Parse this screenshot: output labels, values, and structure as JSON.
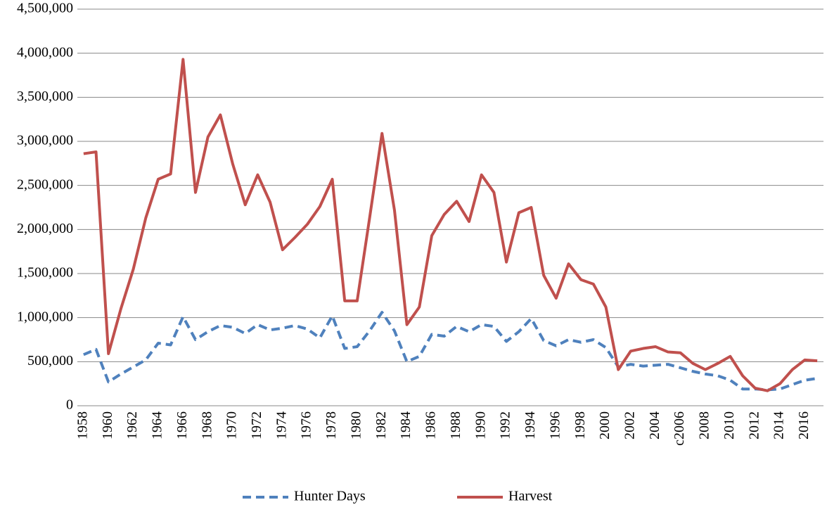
{
  "chart_data": {
    "type": "line",
    "categories": [
      "1958",
      null,
      "1960",
      null,
      "1962",
      null,
      "1964",
      null,
      "1966",
      null,
      "1968",
      null,
      "1970",
      null,
      "1972",
      null,
      "1974",
      null,
      "1976",
      null,
      "1978",
      null,
      "1980",
      null,
      "1982",
      null,
      "1984",
      null,
      "1986",
      null,
      "1988",
      null,
      "1990",
      null,
      "1992",
      null,
      "1994",
      null,
      "1996",
      null,
      "1998",
      null,
      "2000",
      null,
      "2002",
      null,
      "2004",
      null,
      "c2006",
      null,
      "2008",
      null,
      "2010",
      null,
      "2012",
      null,
      "2014",
      null,
      "2016",
      null
    ],
    "series": [
      {
        "name": "Hunter Days",
        "color": "#4f81bd",
        "dashed": true,
        "values": [
          580000,
          640000,
          270000,
          360000,
          440000,
          520000,
          710000,
          690000,
          1010000,
          750000,
          840000,
          910000,
          890000,
          820000,
          920000,
          860000,
          880000,
          910000,
          870000,
          770000,
          1020000,
          650000,
          670000,
          850000,
          1060000,
          850000,
          500000,
          560000,
          810000,
          790000,
          900000,
          840000,
          920000,
          900000,
          730000,
          840000,
          990000,
          740000,
          680000,
          750000,
          720000,
          750000,
          660000,
          440000,
          470000,
          450000,
          460000,
          470000,
          430000,
          390000,
          360000,
          340000,
          290000,
          190000,
          190000,
          180000,
          190000,
          240000,
          290000,
          310000
        ]
      },
      {
        "name": "Harvest",
        "color": "#c0504d",
        "dashed": false,
        "values": [
          2860000,
          2880000,
          590000,
          1100000,
          1550000,
          2130000,
          2570000,
          2630000,
          3930000,
          2420000,
          3050000,
          3300000,
          2740000,
          2280000,
          2620000,
          2310000,
          1770000,
          1910000,
          2060000,
          2260000,
          2570000,
          1190000,
          1190000,
          2130000,
          3090000,
          2220000,
          920000,
          1120000,
          1930000,
          2170000,
          2320000,
          2090000,
          2620000,
          2420000,
          1630000,
          2190000,
          2250000,
          1480000,
          1220000,
          1610000,
          1430000,
          1380000,
          1120000,
          410000,
          620000,
          650000,
          670000,
          610000,
          600000,
          480000,
          410000,
          480000,
          560000,
          340000,
          200000,
          170000,
          250000,
          410000,
          520000,
          510000
        ]
      }
    ],
    "ylim": [
      0,
      4500000
    ],
    "yticks": [
      0,
      {
        "value": 500000,
        "label": "500,000"
      },
      {
        "value": 1000000,
        "label": "1,000,000"
      },
      {
        "value": 1500000,
        "label": "1,500,000"
      },
      {
        "value": 2000000,
        "label": "2,000,000"
      },
      {
        "value": 2500000,
        "label": "2,500,000"
      },
      {
        "value": 3000000,
        "label": "3,000,000"
      },
      {
        "value": 3500000,
        "label": "3,500,000"
      },
      {
        "value": 4000000,
        "label": "4,000,000"
      },
      {
        "value": 4500000,
        "label": "4,500,000"
      }
    ],
    "grid": true,
    "legend": "bottom"
  }
}
